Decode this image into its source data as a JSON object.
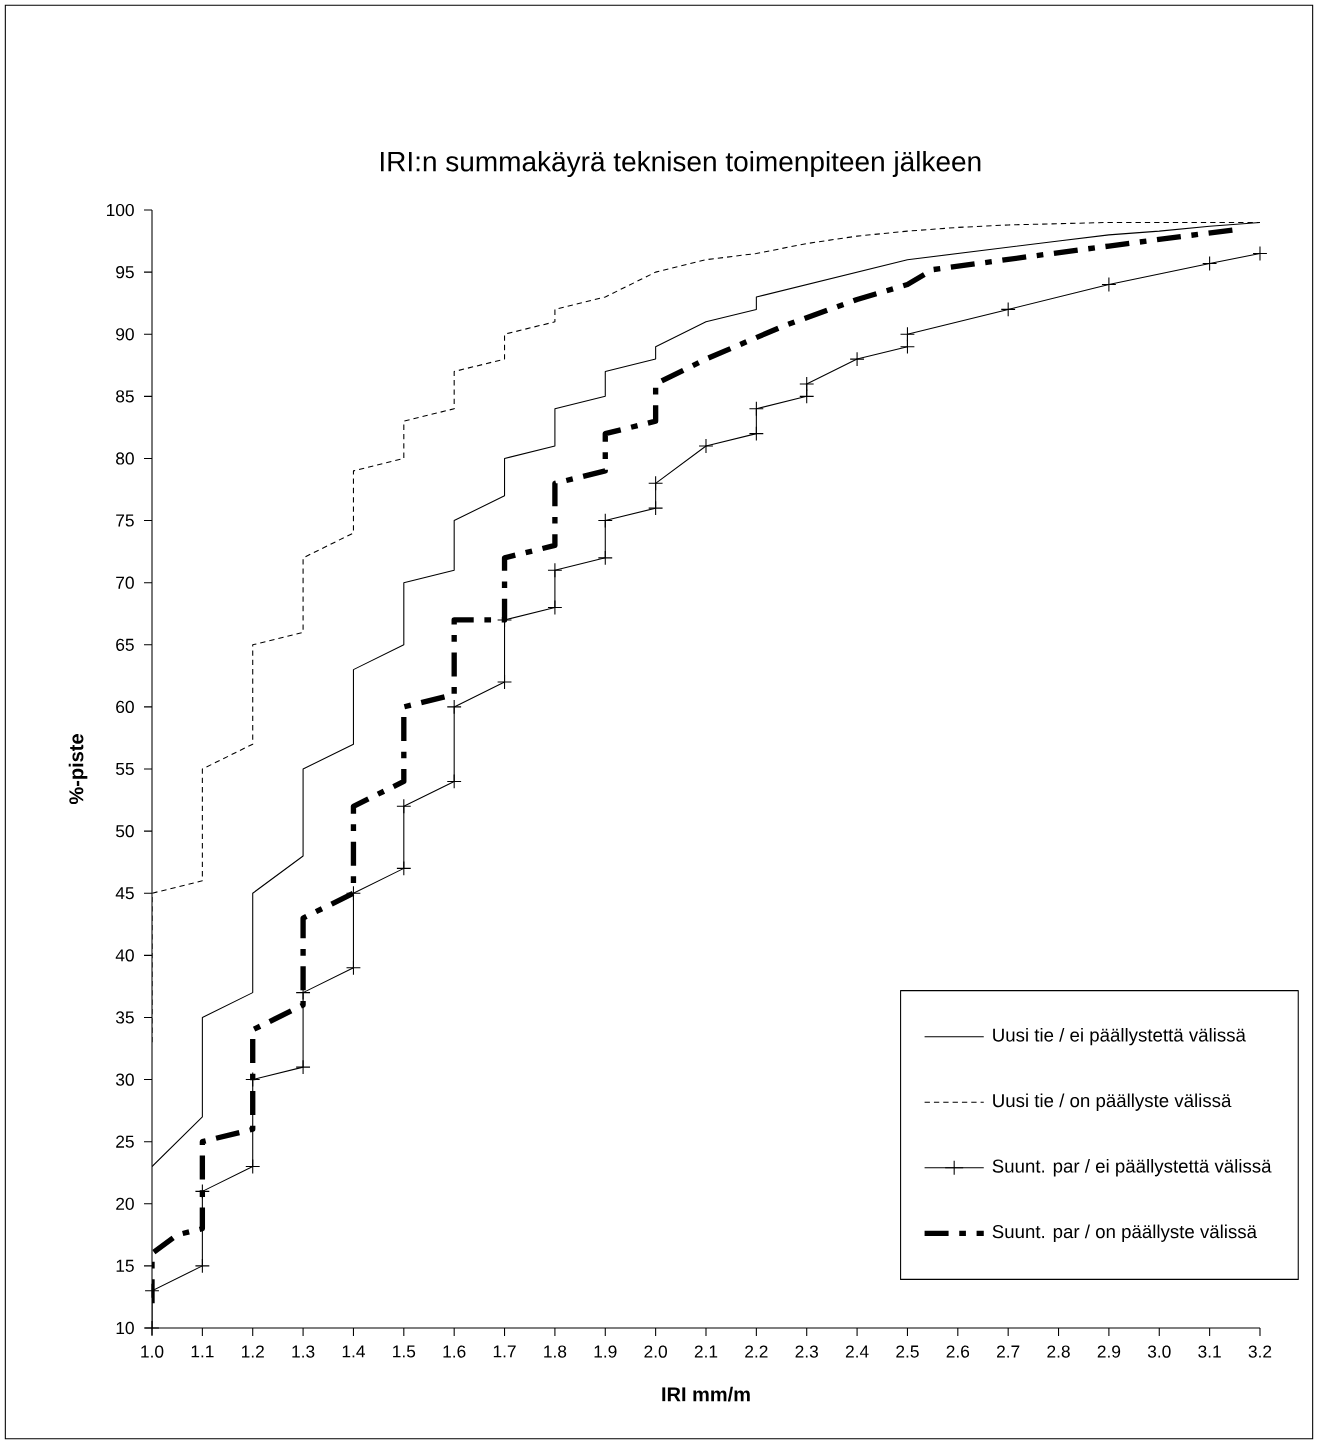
{
  "chart_data": {
    "type": "line",
    "title": "IRI:n summakäyrä teknisen toimenpiteen jälkeen",
    "xlabel": "IRI mm/m",
    "ylabel": "%-piste",
    "xlim": [
      1.0,
      3.2
    ],
    "ylim": [
      10,
      100
    ],
    "xticks": [
      {
        "value": 1.0,
        "label": "1.0"
      },
      {
        "value": 1.1,
        "label": "1.1"
      },
      {
        "value": 1.2,
        "label": "1.2"
      },
      {
        "value": 1.3,
        "label": "1.3"
      },
      {
        "value": 1.4,
        "label": "1.4"
      },
      {
        "value": 1.5,
        "label": "1.5"
      },
      {
        "value": 1.6,
        "label": "1.6"
      },
      {
        "value": 1.7,
        "label": "1.7"
      },
      {
        "value": 1.8,
        "label": "1.8"
      },
      {
        "value": 1.9,
        "label": "1.9"
      },
      {
        "value": 2.0,
        "label": "2.0"
      },
      {
        "value": 2.1,
        "label": "2.1"
      },
      {
        "value": 2.2,
        "label": "2.2"
      },
      {
        "value": 2.3,
        "label": "2.3"
      },
      {
        "value": 2.4,
        "label": "2.4"
      },
      {
        "value": 2.5,
        "label": "2.5"
      },
      {
        "value": 2.6,
        "label": "2.6"
      },
      {
        "value": 2.7,
        "label": "2.7"
      },
      {
        "value": 2.8,
        "label": "2.8"
      },
      {
        "value": 2.9,
        "label": "2.9"
      },
      {
        "value": 3.0,
        "label": "3.0"
      },
      {
        "value": 3.1,
        "label": "3.1"
      },
      {
        "value": 3.2,
        "label": "3.2"
      }
    ],
    "yticks": [
      10,
      15,
      20,
      25,
      30,
      35,
      40,
      45,
      50,
      55,
      60,
      65,
      70,
      75,
      80,
      85,
      90,
      95,
      100
    ],
    "grid": false,
    "legend": "bottom right",
    "series": [
      {
        "name": "Uusi tie / ei päällystettä välissä",
        "color": "#000000",
        "line_style": "solid",
        "marker": "none",
        "x": [
          1.0,
          1.1,
          1.1,
          1.2,
          1.2,
          1.3,
          1.3,
          1.4,
          1.4,
          1.5,
          1.5,
          1.6,
          1.6,
          1.7,
          1.7,
          1.8,
          1.8,
          1.9,
          1.9,
          2.0,
          2.0,
          2.1,
          2.2,
          2.2,
          2.3,
          2.4,
          2.5,
          2.6,
          2.7,
          2.8,
          2.9,
          3.0,
          3.1,
          3.2
        ],
        "values": [
          23,
          27,
          35,
          37,
          45,
          48,
          55,
          57,
          63,
          65,
          70,
          71,
          75,
          77,
          80,
          81,
          84,
          85,
          87,
          88,
          89,
          91,
          92,
          93,
          94,
          95,
          96,
          96.5,
          97,
          97.5,
          98,
          98.3,
          98.7,
          99
        ]
      },
      {
        "name": "Uusi tie / on päällyste välissä",
        "color": "#000000",
        "line_style": "dotted",
        "marker": "none",
        "x": [
          1.0,
          1.0,
          1.1,
          1.1,
          1.2,
          1.2,
          1.3,
          1.3,
          1.4,
          1.4,
          1.5,
          1.5,
          1.6,
          1.6,
          1.7,
          1.7,
          1.8,
          1.8,
          1.9,
          2.0,
          2.1,
          2.2,
          2.3,
          2.4,
          2.5,
          2.6,
          2.7,
          2.9,
          3.2
        ],
        "values": [
          33,
          45,
          46,
          55,
          57,
          65,
          66,
          72,
          74,
          79,
          80,
          83,
          84,
          87,
          88,
          90,
          91,
          92,
          93,
          95,
          96,
          96.5,
          97.3,
          97.9,
          98.3,
          98.6,
          98.8,
          99,
          99
        ]
      },
      {
        "name": "Suunt. par / ei päällystettä välissä",
        "color": "#000000",
        "line_style": "solid",
        "marker": "cross",
        "x": [
          1.0,
          1.0,
          1.1,
          1.1,
          1.2,
          1.2,
          1.3,
          1.3,
          1.4,
          1.4,
          1.5,
          1.5,
          1.6,
          1.6,
          1.7,
          1.7,
          1.8,
          1.8,
          1.9,
          1.9,
          2.0,
          2.0,
          2.1,
          2.2,
          2.2,
          2.3,
          2.3,
          2.4,
          2.5,
          2.5,
          2.7,
          2.9,
          3.1,
          3.2
        ],
        "values": [
          10,
          13,
          15,
          21,
          23,
          30,
          31,
          37,
          39,
          45,
          47,
          52,
          54,
          60,
          62,
          67,
          68,
          71,
          72,
          75,
          76,
          78,
          81,
          82,
          84,
          85,
          86,
          88,
          89,
          90,
          92,
          94,
          95.7,
          96.5
        ]
      },
      {
        "name": "Suunt. par / on päällyste välissä",
        "color": "#000000",
        "line_style": "dashed",
        "marker": "none",
        "x": [
          1.0,
          1.0,
          1.05,
          1.1,
          1.1,
          1.2,
          1.2,
          1.3,
          1.3,
          1.4,
          1.4,
          1.5,
          1.5,
          1.6,
          1.6,
          1.7,
          1.7,
          1.8,
          1.8,
          1.9,
          1.9,
          2.0,
          2.0,
          2.1,
          2.25,
          2.4,
          2.5,
          2.55,
          2.75,
          2.9,
          3.05,
          3.15
        ],
        "values": [
          12,
          16,
          17.5,
          18,
          25,
          26,
          34,
          36,
          43,
          45,
          52,
          54,
          60,
          61,
          67,
          67,
          72,
          73,
          78,
          79,
          82,
          83,
          86,
          88,
          90.6,
          92.8,
          94,
          95.2,
          96.3,
          97.1,
          97.9,
          98.4
        ]
      }
    ]
  }
}
